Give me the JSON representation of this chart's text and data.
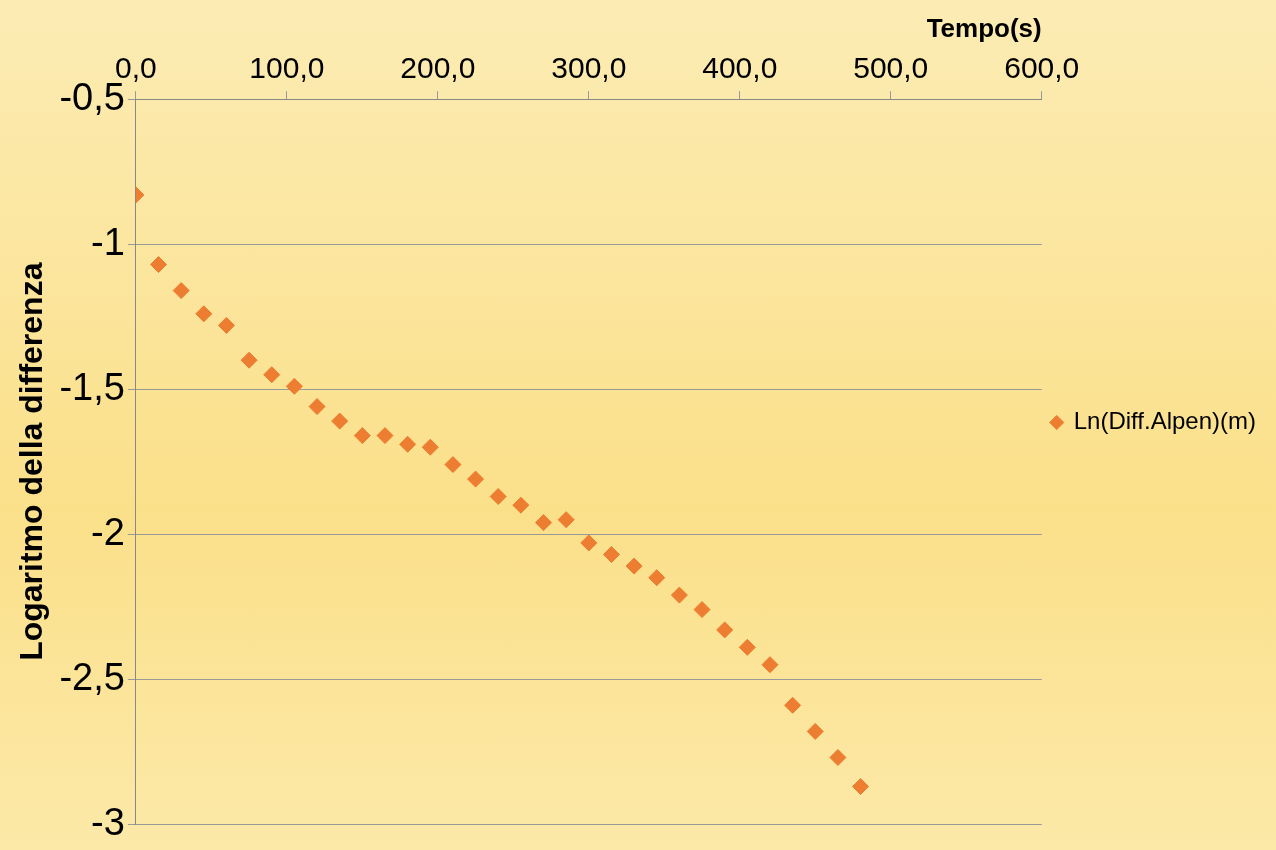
{
  "chart_data": {
    "type": "scatter",
    "xlabel": "Tempo(s)",
    "ylabel": "Logaritmo della differenza",
    "x": [
      0,
      15,
      30,
      45,
      60,
      75,
      90,
      105,
      120,
      135,
      150,
      165,
      180,
      195,
      210,
      225,
      240,
      255,
      270,
      285,
      300,
      315,
      330,
      345,
      360,
      375,
      390,
      405,
      420,
      435,
      450,
      465,
      480
    ],
    "series": [
      {
        "name": "Ln(Diff.Alpen)(m)",
        "color": "#ed7d31",
        "values": [
          -0.83,
          -1.07,
          -1.16,
          -1.24,
          -1.28,
          -1.4,
          -1.45,
          -1.49,
          -1.56,
          -1.61,
          -1.66,
          -1.66,
          -1.69,
          -1.7,
          -1.76,
          -1.81,
          -1.87,
          -1.9,
          -1.96,
          -1.95,
          -2.03,
          -2.07,
          -2.11,
          -2.15,
          -2.21,
          -2.26,
          -2.33,
          -2.39,
          -2.45,
          -2.59,
          -2.68,
          -2.77,
          -2.87
        ]
      }
    ],
    "xlim": [
      0,
      600
    ],
    "xticks": [
      {
        "value": 0,
        "label": "0,0"
      },
      {
        "value": 100,
        "label": "100,0"
      },
      {
        "value": 200,
        "label": "200,0"
      },
      {
        "value": 300,
        "label": "300,0"
      },
      {
        "value": 400,
        "label": "400,0"
      },
      {
        "value": 500,
        "label": "500,0"
      },
      {
        "value": 600,
        "label": "600,0"
      }
    ],
    "ylim": [
      -3,
      -0.5
    ],
    "yticks": [
      {
        "value": -0.5,
        "label": "-0,5"
      },
      -1,
      {
        "value": -1.5,
        "label": "-1,5"
      },
      -2,
      {
        "value": -2.5,
        "label": "-2,5"
      },
      -3
    ],
    "grid": "y",
    "legend": "right",
    "marker": "diamond"
  }
}
